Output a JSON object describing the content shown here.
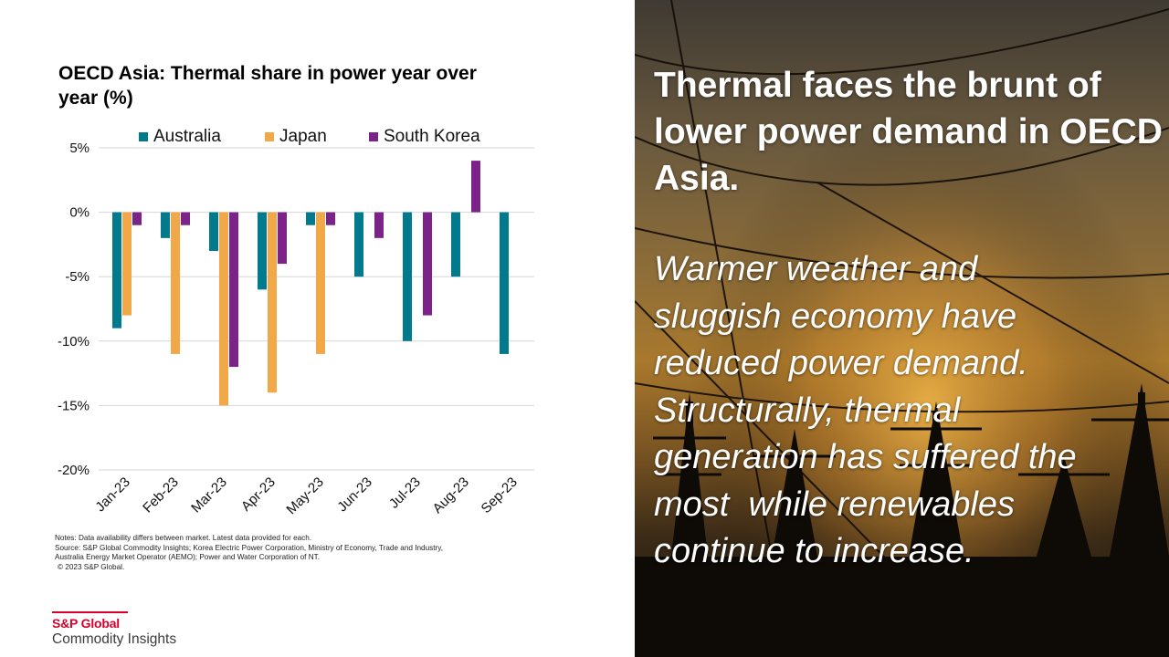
{
  "chart_data": {
    "type": "bar",
    "title": "OECD Asia: Thermal share in power year over year (%)",
    "categories": [
      "Jan-23",
      "Feb-23",
      "Mar-23",
      "Apr-23",
      "May-23",
      "Jun-23",
      "Jul-23",
      "Aug-23",
      "Sep-23"
    ],
    "series": [
      {
        "name": "Australia",
        "color": "#007a8c",
        "values": [
          -9,
          -2,
          -3,
          -6,
          -1,
          -5,
          -10,
          -5,
          -11
        ]
      },
      {
        "name": "Japan",
        "color": "#f0a848",
        "values": [
          -8,
          -11,
          -15,
          -14,
          -11,
          null,
          null,
          null,
          null
        ]
      },
      {
        "name": "South Korea",
        "color": "#7b2388",
        "values": [
          -1,
          -1,
          -12,
          -4,
          -1,
          -2,
          -8,
          4,
          null
        ]
      }
    ],
    "ylim": [
      -20,
      5
    ],
    "yticks": [
      5,
      0,
      -5,
      -10,
      -15,
      -20
    ],
    "ytick_labels": [
      "5%",
      "0%",
      "-5%",
      "-10%",
      "-15%",
      "-20%"
    ],
    "xlabel": "",
    "ylabel": "",
    "grid": true,
    "legend_position": "top"
  },
  "notes": [
    "Notes: Data availability differs between market. Latest data provided for each.",
    "Source: S&P Global Commodity Insights; Korea Electric Power Corporation, Ministry of Economy, Trade and Industry,",
    "Australia Energy Market Operator (AEMO); Power and Water Corporation of NT.",
    "© 2023 S&P Global."
  ],
  "logo": {
    "brand": "S&P Global",
    "sub": "Commodity Insights"
  },
  "headline": "Thermal faces the brunt of lower power demand in OECD Asia.",
  "body_lines": [
    "Warmer weather and",
    "sluggish economy have",
    "reduced power demand.",
    "Structurally, thermal",
    "generation has suffered the",
    "most  while renewables",
    "continue to increase."
  ]
}
